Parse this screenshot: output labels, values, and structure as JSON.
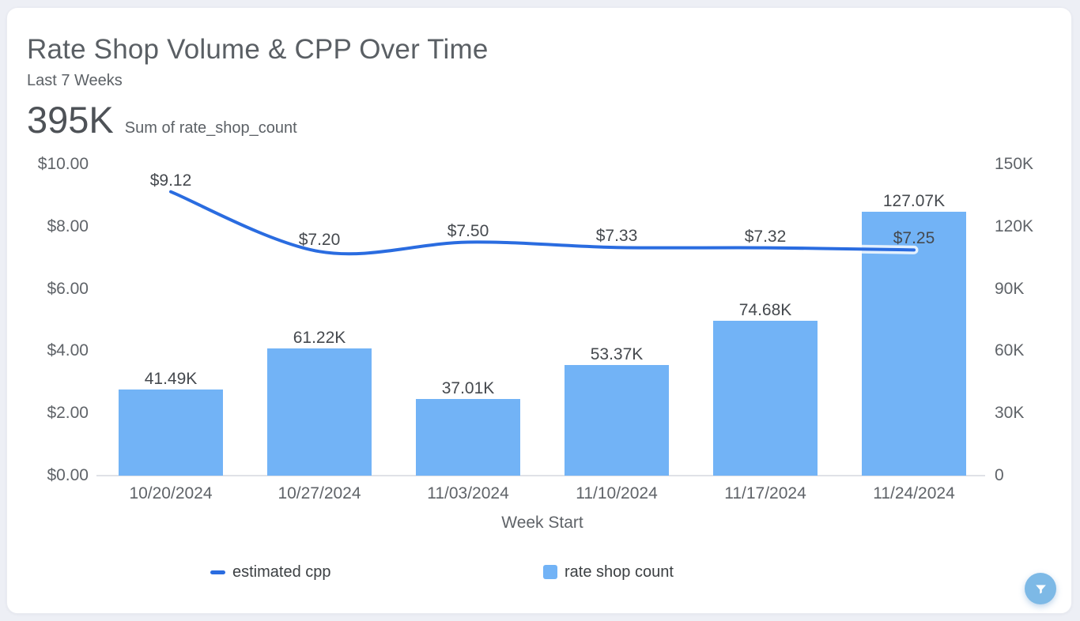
{
  "header": {
    "title": "Rate Shop Volume & CPP Over Time",
    "subtitle": "Last 7 Weeks",
    "kpi_value": "395K",
    "kpi_label": "Sum of rate_shop_count"
  },
  "chart_data": {
    "type": "combo",
    "categories": [
      "10/20/2024",
      "10/27/2024",
      "11/03/2024",
      "11/10/2024",
      "11/17/2024",
      "11/24/2024"
    ],
    "series": [
      {
        "name": "estimated cpp",
        "type": "line",
        "y_axis": "left",
        "values": [
          9.12,
          7.2,
          7.5,
          7.33,
          7.32,
          7.25
        ],
        "labels": [
          "$9.12",
          "$7.20",
          "$7.50",
          "$7.33",
          "$7.32",
          "$7.25"
        ],
        "color": "#2a6ce0"
      },
      {
        "name": "rate shop count",
        "type": "bar",
        "y_axis": "right",
        "values": [
          41490,
          61220,
          37010,
          53370,
          74680,
          127070
        ],
        "labels": [
          "41.49K",
          "61.22K",
          "37.01K",
          "53.37K",
          "74.68K",
          "127.07K"
        ],
        "color": "#72b3f6"
      }
    ],
    "left_axis": {
      "ticks": [
        "$10.00",
        "$8.00",
        "$6.00",
        "$4.00",
        "$2.00",
        "$0.00"
      ],
      "range": [
        0,
        10
      ]
    },
    "right_axis": {
      "ticks": [
        "150K",
        "120K",
        "90K",
        "60K",
        "30K",
        "0"
      ],
      "range": [
        0,
        150000
      ]
    },
    "xlabel": "Week Start",
    "legend_position": "bottom",
    "grid": false
  },
  "colors": {
    "line": "#2a6ce0",
    "bar": "#72b3f6",
    "page_background": "#edeff5",
    "card_background": "#ffffff",
    "filter_button": "#7db9e6",
    "axis_text": "#5f6368",
    "data_label_text": "#45494e",
    "title_text": "#5a5f64",
    "legend_text": "#3c4043"
  },
  "filter_button": {
    "icon": "funnel-icon"
  }
}
